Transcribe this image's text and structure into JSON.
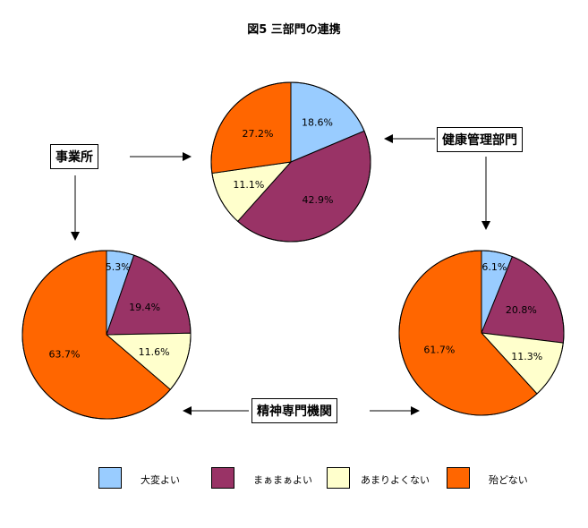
{
  "chart_data": {
    "type": "pie",
    "title": "図5 三部門の連携",
    "categories": [
      "大変よい",
      "まぁまぁよい",
      "あまりよくない",
      "殆どない"
    ],
    "colors": [
      "#99CCFF",
      "#993366",
      "#FFFFCC",
      "#FF6600"
    ],
    "legend_position": "bottom",
    "pies": [
      {
        "name": "健康管理部門",
        "values": [
          18.6,
          42.9,
          11.1,
          27.2
        ],
        "labels": [
          "18.6%",
          "42.9%",
          "11.1%",
          "27.2%"
        ]
      },
      {
        "name": "事業所",
        "values": [
          5.3,
          19.4,
          11.6,
          63.7
        ],
        "labels": [
          "5.3%",
          "19.4%",
          "11.6%",
          "63.7%"
        ]
      },
      {
        "name": "精神専門機関",
        "values": [
          6.1,
          20.8,
          11.3,
          61.7
        ],
        "labels": [
          "6.1%",
          "20.8%",
          "11.3%",
          "61.7%"
        ]
      }
    ]
  },
  "boxes": {
    "jigyosho": "事業所",
    "kenko": "健康管理部門",
    "seishin": "精神専門機関"
  }
}
